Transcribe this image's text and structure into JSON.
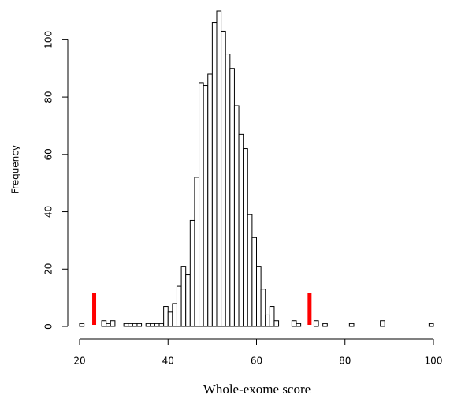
{
  "chart_data": {
    "type": "histogram",
    "x_label": "Whole-exome score",
    "y_label": "Frequency",
    "bins": [
      20,
      21,
      22,
      23,
      24,
      25,
      26,
      27,
      28,
      29,
      30,
      31,
      32,
      33,
      34,
      35,
      36,
      37,
      38,
      39,
      40,
      41,
      42,
      43,
      44,
      45,
      46,
      47,
      48,
      49,
      50,
      51,
      52,
      53,
      54,
      55,
      56,
      57,
      58,
      59,
      60,
      61,
      62,
      63,
      64,
      65,
      66,
      67,
      68,
      69,
      70,
      71,
      72,
      73,
      74,
      75,
      76,
      77,
      78,
      79,
      80,
      81,
      82,
      83,
      84,
      85,
      86,
      87,
      88,
      89,
      90,
      91,
      92,
      93,
      94,
      95,
      96,
      97,
      98,
      99,
      100
    ],
    "values": [
      1,
      0,
      0,
      0,
      0,
      2,
      1,
      2,
      0,
      0,
      1,
      1,
      1,
      1,
      0,
      1,
      1,
      1,
      1,
      7,
      5,
      8,
      14,
      21,
      18,
      37,
      52,
      85,
      84,
      88,
      106,
      110,
      103,
      95,
      90,
      77,
      67,
      62,
      39,
      31,
      21,
      13,
      4,
      7,
      2,
      0,
      0,
      0,
      2,
      1,
      0,
      0,
      0,
      2,
      0,
      1,
      0,
      0,
      0,
      0,
      0,
      1,
      0,
      0,
      0,
      0,
      0,
      0,
      2,
      0,
      0,
      0,
      0,
      0,
      0,
      0,
      0,
      0,
      0,
      1
    ],
    "color": "#ffffff",
    "edge_color": "#000000",
    "xlim": [
      20,
      100
    ],
    "xticks": [
      20,
      40,
      60,
      80,
      100
    ],
    "ylim": [
      0,
      110
    ],
    "yticks": [
      0,
      20,
      40,
      60,
      80,
      100
    ],
    "highlights": [
      {
        "x": 23.3,
        "color": "#ff0000"
      },
      {
        "x": 72,
        "color": "#ff0000"
      }
    ]
  }
}
